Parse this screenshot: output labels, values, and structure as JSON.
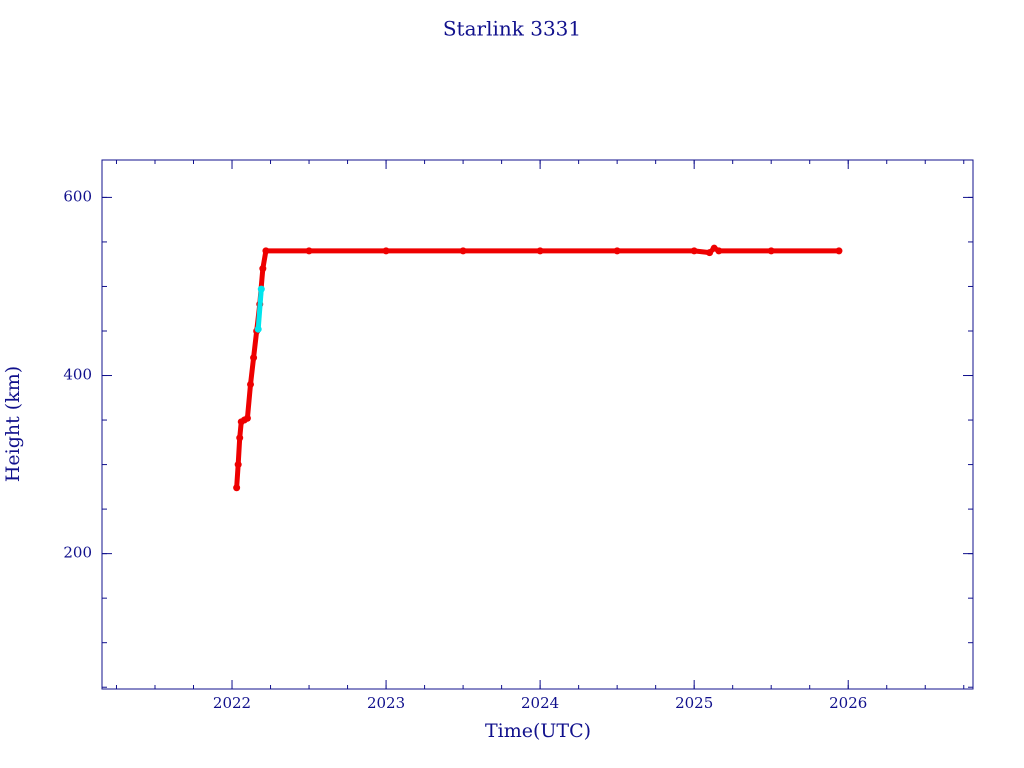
{
  "chart_data": {
    "type": "line",
    "title": "Starlink 3331",
    "x_label": "Time(UTC)",
    "y_label": "Height (km)",
    "xlim": [
      2021.156,
      2026.81
    ],
    "ylim": [
      48,
      642
    ],
    "xticks": [
      2022,
      2023,
      2024,
      2025,
      2026
    ],
    "yticks": [
      200,
      400,
      600
    ],
    "minor_divisions": 4,
    "grid": false,
    "series": [
      {
        "color": "#ee0000",
        "x": [
          2022.03,
          2022.04,
          2022.05,
          2022.06,
          2022.08,
          2022.1,
          2022.12,
          2022.14,
          2022.16,
          2022.18,
          2022.2,
          2022.22,
          2022.5,
          2023,
          2023.5,
          2024,
          2024.5,
          2025,
          2025.1,
          2025.13,
          2025.16,
          2025.5,
          2025.94
        ],
        "values": [
          274,
          300,
          330,
          348,
          350,
          352,
          390,
          420,
          450,
          480,
          520,
          540,
          540,
          540,
          540,
          540,
          540,
          540,
          538,
          543,
          540,
          540,
          540
        ]
      },
      {
        "color": "#00e5ee",
        "x": [
          2022.17,
          2022.19
        ],
        "values": [
          452,
          497
        ]
      }
    ]
  }
}
